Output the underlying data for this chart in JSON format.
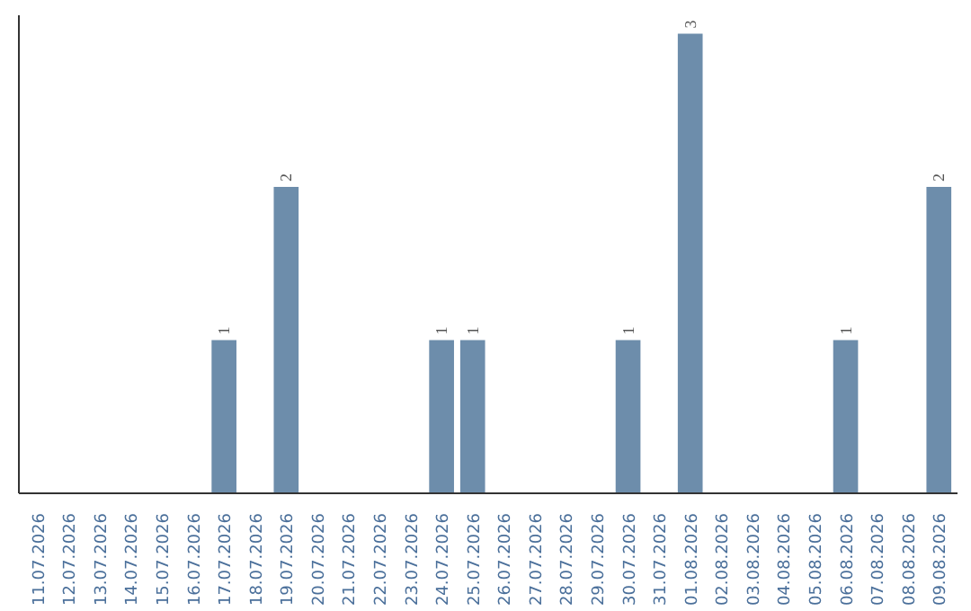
{
  "chart_data": {
    "type": "bar",
    "categories": [
      "11.07.2026",
      "12.07.2026",
      "13.07.2026",
      "14.07.2026",
      "15.07.2026",
      "16.07.2026",
      "17.07.2026",
      "18.07.2026",
      "19.07.2026",
      "20.07.2026",
      "21.07.2026",
      "22.07.2026",
      "23.07.2026",
      "24.07.2026",
      "25.07.2026",
      "26.07.2026",
      "27.07.2026",
      "28.07.2026",
      "29.07.2026",
      "30.07.2026",
      "31.07.2026",
      "01.08.2026",
      "02.08.2026",
      "03.08.2026",
      "04.08.2026",
      "05.08.2026",
      "06.08.2026",
      "07.08.2026",
      "08.08.2026",
      "09.08.2026"
    ],
    "values": [
      0,
      0,
      0,
      0,
      0,
      0,
      1,
      0,
      2,
      0,
      0,
      0,
      0,
      1,
      1,
      0,
      0,
      0,
      0,
      1,
      0,
      3,
      0,
      0,
      0,
      0,
      1,
      0,
      0,
      2
    ],
    "value_labels": [
      null,
      null,
      null,
      null,
      null,
      null,
      "1",
      null,
      "2",
      null,
      null,
      null,
      null,
      "1",
      "1",
      null,
      null,
      null,
      null,
      "1",
      null,
      "3",
      null,
      null,
      null,
      null,
      "1",
      null,
      null,
      "2"
    ],
    "color": "#6d8dab",
    "grid": false
  }
}
